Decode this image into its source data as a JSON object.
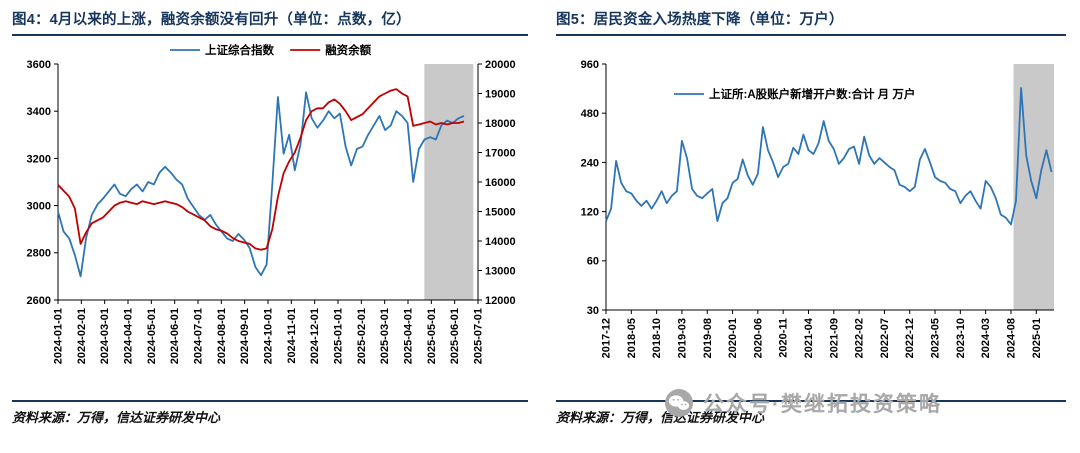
{
  "colors": {
    "navy": "#17365D",
    "blue": "#2E75B6",
    "red": "#C00000",
    "band": "#C9C9C9",
    "watermark": "#A8A8A8"
  },
  "left_panel": {
    "title": "图4：4月以来的上涨，融资余额没有回升（单位：点数，亿）",
    "source": "资料来源：万得，信达证券研发中心"
  },
  "right_panel": {
    "title": "图5：居民资金入场热度下降（单位：万户）",
    "source": "资料来源：万得，信达证券研发中心"
  },
  "watermark": {
    "text": "公众号·樊继拓投资策略"
  },
  "chart_data": [
    {
      "type": "line",
      "title": "4月以来的上涨，融资余额没有回升（单位：点数，亿）",
      "x_max": 18,
      "x_ticks": [
        {
          "t": 0,
          "label": "2024-01-01"
        },
        {
          "t": 1,
          "label": "2024-02-01"
        },
        {
          "t": 2,
          "label": "2024-03-01"
        },
        {
          "t": 3,
          "label": "2024-04-01"
        },
        {
          "t": 4,
          "label": "2024-05-01"
        },
        {
          "t": 5,
          "label": "2024-06-01"
        },
        {
          "t": 6,
          "label": "2024-07-01"
        },
        {
          "t": 7,
          "label": "2024-08-01"
        },
        {
          "t": 8,
          "label": "2024-09-01"
        },
        {
          "t": 9,
          "label": "2024-10-01"
        },
        {
          "t": 10,
          "label": "2024-11-01"
        },
        {
          "t": 11,
          "label": "2024-12-01"
        },
        {
          "t": 12,
          "label": "2025-01-01"
        },
        {
          "t": 13,
          "label": "2025-02-01"
        },
        {
          "t": 14,
          "label": "2025-03-01"
        },
        {
          "t": 15,
          "label": "2025-04-01"
        },
        {
          "t": 16,
          "label": "2025-05-01"
        },
        {
          "t": 17,
          "label": "2025-06-01"
        },
        {
          "t": 18,
          "label": "2025-07-01"
        }
      ],
      "y_left": {
        "min": 2600,
        "max": 3600,
        "ticks": [
          2600,
          2800,
          3000,
          3200,
          3400,
          3600
        ]
      },
      "y_right": {
        "min": 12000,
        "max": 20000,
        "ticks": [
          12000,
          13000,
          14000,
          15000,
          16000,
          17000,
          18000,
          19000,
          20000
        ]
      },
      "band": {
        "t0": 15.7,
        "t1": 17.8
      },
      "series": [
        {
          "name": "上证综合指数",
          "color_key": "blue",
          "axis": "left",
          "t0": 0,
          "t1": 17.4,
          "values": [
            2975,
            2890,
            2860,
            2790,
            2700,
            2865,
            2960,
            3005,
            3030,
            3060,
            3090,
            3050,
            3040,
            3070,
            3090,
            3060,
            3100,
            3090,
            3140,
            3165,
            3140,
            3110,
            3090,
            3030,
            2995,
            2960,
            2940,
            2960,
            2920,
            2890,
            2860,
            2850,
            2880,
            2855,
            2820,
            2740,
            2705,
            2750,
            3090,
            3460,
            3220,
            3300,
            3150,
            3260,
            3480,
            3370,
            3330,
            3360,
            3400,
            3370,
            3390,
            3250,
            3170,
            3240,
            3250,
            3300,
            3340,
            3380,
            3320,
            3340,
            3400,
            3380,
            3350,
            3100,
            3240,
            3280,
            3290,
            3280,
            3340,
            3360,
            3350,
            3370,
            3380
          ]
        },
        {
          "name": "融资余额",
          "color_key": "red",
          "axis": "right",
          "t0": 0,
          "t1": 17.4,
          "values": [
            15900,
            15700,
            15500,
            15100,
            13900,
            14300,
            14600,
            14700,
            14800,
            15000,
            15200,
            15300,
            15350,
            15300,
            15250,
            15350,
            15300,
            15250,
            15300,
            15350,
            15300,
            15250,
            15150,
            15000,
            14900,
            14800,
            14700,
            14500,
            14400,
            14350,
            14250,
            14100,
            14000,
            13950,
            13900,
            13750,
            13700,
            13750,
            14400,
            15500,
            16300,
            16700,
            17000,
            17500,
            18100,
            18400,
            18500,
            18500,
            18700,
            18800,
            18650,
            18400,
            18100,
            18200,
            18300,
            18500,
            18700,
            18900,
            19000,
            19100,
            19150,
            19000,
            18900,
            17900,
            17950,
            18000,
            18050,
            17950,
            18000,
            17950,
            18000,
            18000,
            18050
          ]
        }
      ]
    },
    {
      "type": "line",
      "scale": "log",
      "title": "居民资金入场热度下降（单位：万户）",
      "x_max": 88.5,
      "x_ticks": [
        {
          "t": 0,
          "label": "2017-12"
        },
        {
          "t": 5,
          "label": "2018-05"
        },
        {
          "t": 10,
          "label": "2018-10"
        },
        {
          "t": 15,
          "label": "2019-03"
        },
        {
          "t": 20,
          "label": "2019-08"
        },
        {
          "t": 25,
          "label": "2020-01"
        },
        {
          "t": 30,
          "label": "2020-06"
        },
        {
          "t": 35,
          "label": "2020-11"
        },
        {
          "t": 40,
          "label": "2021-04"
        },
        {
          "t": 45,
          "label": "2021-09"
        },
        {
          "t": 50,
          "label": "2022-02"
        },
        {
          "t": 55,
          "label": "2022-07"
        },
        {
          "t": 60,
          "label": "2022-12"
        },
        {
          "t": 65,
          "label": "2023-05"
        },
        {
          "t": 70,
          "label": "2023-10"
        },
        {
          "t": 75,
          "label": "2024-03"
        },
        {
          "t": 80,
          "label": "2024-08"
        },
        {
          "t": 85,
          "label": "2025-01"
        }
      ],
      "y": {
        "min": 30,
        "max": 960,
        "ticks": [
          960,
          480,
          240,
          120,
          60,
          30
        ]
      },
      "band": {
        "t0": 80.5,
        "t1": 88.5
      },
      "series": [
        {
          "name": "上证所:A股账户新增开户数:合计 月 万户",
          "color_key": "blue",
          "axis": "left",
          "t0": 0,
          "t1": 88,
          "values": [
            105,
            125,
            245,
            180,
            160,
            155,
            140,
            130,
            140,
            125,
            140,
            160,
            135,
            150,
            160,
            325,
            255,
            165,
            150,
            145,
            155,
            165,
            105,
            135,
            145,
            180,
            190,
            250,
            200,
            175,
            205,
            395,
            285,
            240,
            195,
            225,
            235,
            295,
            270,
            355,
            285,
            270,
            315,
            430,
            325,
            290,
            235,
            255,
            290,
            300,
            235,
            345,
            265,
            235,
            255,
            240,
            225,
            215,
            175,
            170,
            160,
            170,
            250,
            290,
            240,
            195,
            185,
            180,
            165,
            160,
            135,
            150,
            160,
            140,
            125,
            185,
            170,
            145,
            115,
            110,
            100,
            140,
            685,
            265,
            185,
            145,
            215,
            285,
            210
          ]
        }
      ]
    }
  ]
}
